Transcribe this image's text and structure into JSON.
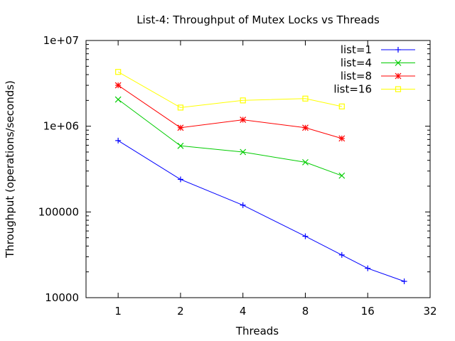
{
  "chart_data": {
    "type": "line",
    "title": "List-4: Throughput of Mutex Locks vs Threads",
    "xlabel": "Threads",
    "ylabel": "Throughput (operations/seconds)",
    "xscale": "log2",
    "yscale": "log10",
    "xlim": [
      0.7,
      32
    ],
    "ylim": [
      10000,
      10000000
    ],
    "xticks": [
      1,
      2,
      4,
      8,
      16,
      32
    ],
    "xtick_labels": [
      "1",
      "2",
      "4",
      "8",
      "16",
      "32"
    ],
    "yticks": [
      10000,
      100000,
      1000000,
      10000000
    ],
    "ytick_labels": [
      "10000",
      "100000",
      "1e+06",
      "1e+07"
    ],
    "grid": false,
    "legend_position": "top-right",
    "series": [
      {
        "name": "list=1",
        "color": "#0000ff",
        "marker": "plus",
        "x": [
          1,
          2,
          4,
          8,
          12,
          16,
          24
        ],
        "y": [
          680000,
          240000,
          120000,
          52000,
          31500,
          22000,
          15500
        ]
      },
      {
        "name": "list=4",
        "color": "#00cc00",
        "marker": "cross",
        "x": [
          1,
          2,
          4,
          8,
          12
        ],
        "y": [
          2050000,
          590000,
          500000,
          380000,
          265000
        ]
      },
      {
        "name": "list=8",
        "color": "#ff0000",
        "marker": "star",
        "x": [
          1,
          2,
          4,
          8,
          12
        ],
        "y": [
          3000000,
          960000,
          1190000,
          960000,
          720000
        ]
      },
      {
        "name": "list=16",
        "color": "#ffff00",
        "marker": "square",
        "x": [
          1,
          2,
          4,
          8,
          12
        ],
        "y": [
          4300000,
          1650000,
          2000000,
          2100000,
          1700000
        ]
      }
    ]
  }
}
